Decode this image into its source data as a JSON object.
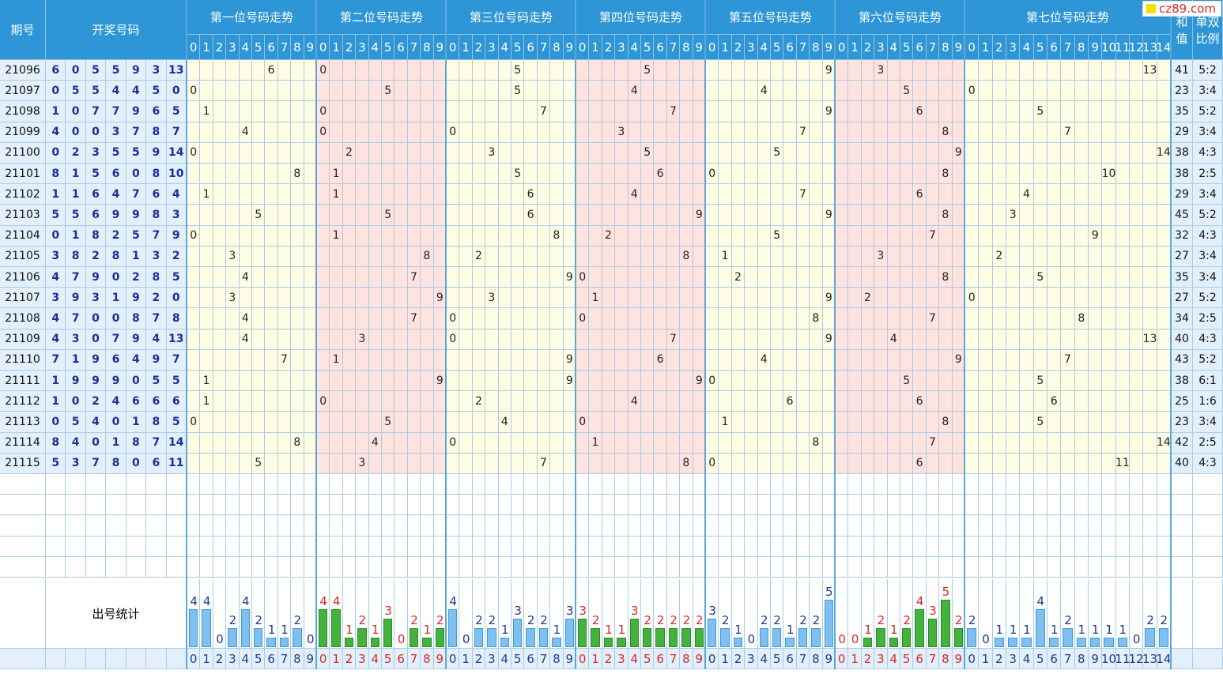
{
  "header": {
    "issue": "期号",
    "numbers": "开奖号码",
    "positions": [
      "第一位号码走势",
      "第二位号码走势",
      "第三位号码走势",
      "第四位号码走势",
      "第五位号码走势",
      "第六位号码走势",
      "第七位号码走势"
    ],
    "sum_label": [
      "和",
      "值"
    ],
    "ratio_label": [
      "单双",
      "比例"
    ],
    "digits_0_9": [
      "0",
      "1",
      "2",
      "3",
      "4",
      "5",
      "6",
      "7",
      "8",
      "9"
    ],
    "digits_0_14": [
      "0",
      "1",
      "2",
      "3",
      "4",
      "5",
      "6",
      "7",
      "8",
      "9",
      "10",
      "11",
      "12",
      "13",
      "14"
    ]
  },
  "logo": "cz89.com",
  "rows": [
    {
      "issue": "21096",
      "nums": [
        6,
        0,
        5,
        5,
        9,
        3,
        13
      ],
      "sum": "41",
      "ratio": "5:2"
    },
    {
      "issue": "21097",
      "nums": [
        0,
        5,
        5,
        4,
        4,
        5,
        0
      ],
      "sum": "23",
      "ratio": "3:4"
    },
    {
      "issue": "21098",
      "nums": [
        1,
        0,
        7,
        7,
        9,
        6,
        5
      ],
      "sum": "35",
      "ratio": "5:2"
    },
    {
      "issue": "21099",
      "nums": [
        4,
        0,
        0,
        3,
        7,
        8,
        7
      ],
      "sum": "29",
      "ratio": "3:4"
    },
    {
      "issue": "21100",
      "nums": [
        0,
        2,
        3,
        5,
        5,
        9,
        14
      ],
      "sum": "38",
      "ratio": "4:3"
    },
    {
      "issue": "21101",
      "nums": [
        8,
        1,
        5,
        6,
        0,
        8,
        10
      ],
      "sum": "38",
      "ratio": "2:5"
    },
    {
      "issue": "21102",
      "nums": [
        1,
        1,
        6,
        4,
        7,
        6,
        4
      ],
      "sum": "29",
      "ratio": "3:4"
    },
    {
      "issue": "21103",
      "nums": [
        5,
        5,
        6,
        9,
        9,
        8,
        3
      ],
      "sum": "45",
      "ratio": "5:2"
    },
    {
      "issue": "21104",
      "nums": [
        0,
        1,
        8,
        2,
        5,
        7,
        9
      ],
      "sum": "32",
      "ratio": "4:3"
    },
    {
      "issue": "21105",
      "nums": [
        3,
        8,
        2,
        8,
        1,
        3,
        2
      ],
      "sum": "27",
      "ratio": "3:4"
    },
    {
      "issue": "21106",
      "nums": [
        4,
        7,
        9,
        0,
        2,
        8,
        5
      ],
      "sum": "35",
      "ratio": "3:4"
    },
    {
      "issue": "21107",
      "nums": [
        3,
        9,
        3,
        1,
        9,
        2,
        0
      ],
      "sum": "27",
      "ratio": "5:2"
    },
    {
      "issue": "21108",
      "nums": [
        4,
        7,
        0,
        0,
        8,
        7,
        8
      ],
      "sum": "34",
      "ratio": "2:5"
    },
    {
      "issue": "21109",
      "nums": [
        4,
        3,
        0,
        7,
        9,
        4,
        13
      ],
      "sum": "40",
      "ratio": "4:3"
    },
    {
      "issue": "21110",
      "nums": [
        7,
        1,
        9,
        6,
        4,
        9,
        7
      ],
      "sum": "43",
      "ratio": "5:2"
    },
    {
      "issue": "21111",
      "nums": [
        1,
        9,
        9,
        9,
        0,
        5,
        5
      ],
      "sum": "38",
      "ratio": "6:1"
    },
    {
      "issue": "21112",
      "nums": [
        1,
        0,
        2,
        4,
        6,
        6,
        6
      ],
      "sum": "25",
      "ratio": "1:6"
    },
    {
      "issue": "21113",
      "nums": [
        0,
        5,
        4,
        0,
        1,
        8,
        5
      ],
      "sum": "23",
      "ratio": "3:4"
    },
    {
      "issue": "21114",
      "nums": [
        8,
        4,
        0,
        1,
        8,
        7,
        14
      ],
      "sum": "42",
      "ratio": "2:5"
    },
    {
      "issue": "21115",
      "nums": [
        5,
        3,
        7,
        8,
        0,
        6,
        11
      ],
      "sum": "40",
      "ratio": "4:3"
    }
  ],
  "stats_label": "出号统计",
  "stats": [
    [
      4,
      4,
      0,
      2,
      4,
      2,
      1,
      1,
      2,
      0
    ],
    [
      4,
      4,
      1,
      2,
      1,
      3,
      0,
      2,
      1,
      2
    ],
    [
      4,
      0,
      2,
      2,
      1,
      3,
      2,
      2,
      1,
      3
    ],
    [
      3,
      2,
      1,
      1,
      3,
      2,
      2,
      2,
      2,
      2
    ],
    [
      3,
      2,
      1,
      0,
      2,
      2,
      1,
      2,
      2,
      5
    ],
    [
      0,
      0,
      1,
      2,
      1,
      2,
      4,
      3,
      5,
      2
    ],
    [
      2,
      0,
      1,
      1,
      1,
      4,
      1,
      2,
      1,
      1,
      1,
      1,
      0,
      2,
      2
    ]
  ],
  "colors": {
    "header": "#2e96d6",
    "trend_yellow": "#fffde3",
    "trend_pink": "#ffe3df",
    "bar_blue": "#7ec1f0",
    "bar_green": "#44b23c",
    "red": "#d62a2a",
    "blue": "#1f3b8a"
  }
}
